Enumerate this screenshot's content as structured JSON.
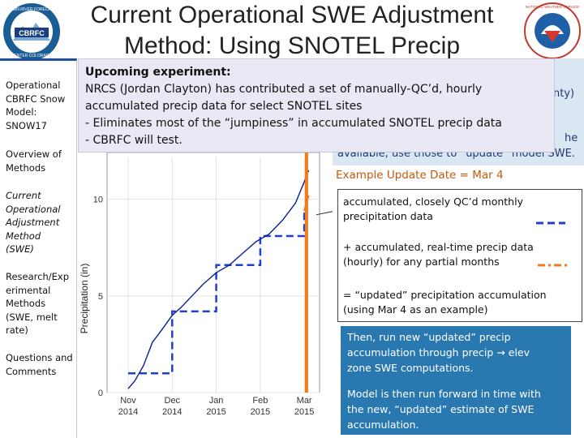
{
  "title_line1": "Current Operational SWE Adjustment",
  "title_line2": "Method: Using SNOTEL Precip",
  "logo_left": {
    "top_text": "BASIN RIVER FORECAST",
    "bottom_text": "CENTER COLORADO",
    "center": "CBRFC"
  },
  "logo_right": {
    "text": "NATIONAL WEATHER SERVICE"
  },
  "sidebar": {
    "item1": [
      "Operational",
      "CBRFC Snow",
      "Model:",
      "SNOW17"
    ],
    "item2": [
      "Overview of",
      "Methods"
    ],
    "item3": [
      "Current",
      "Operational",
      "Adjustment",
      "Method",
      "(SWE)"
    ],
    "item4": [
      "Research/Exp",
      "erimental",
      "Methods",
      "(SWE, melt",
      "rate)"
    ],
    "item5": [
      "Questions and",
      "Comments"
    ]
  },
  "popup": {
    "heading": "Upcoming experiment:",
    "line1": "NRCS (Jordan Clayton) has contributed a set of manually-QC’d, hourly",
    "line2": "accumulated precip data for select SNOTEL sites",
    "line3": "-  Eliminates most of the “jumpiness” in accumulated SNOTEL precip data",
    "line4": "-  CBRFC will test."
  },
  "right_top": {
    "frag1": "nty)",
    "frag2": "he",
    "frag3": "available, use those to “update” model SWE."
  },
  "example_date": "Example Update Date = Mar 4",
  "info": {
    "monthly_1": "accumulated, closely QC’d monthly",
    "monthly_2": "precipitation data",
    "realtime_1": "+ accumulated, real-time precip data",
    "realtime_2": "(hourly) for any partial months",
    "updated_1": "= “updated” precipitation accumulation",
    "updated_2": "(using Mar 4 as an example)"
  },
  "blue_box": {
    "para1_1": "Then, run new “updated” precip",
    "para1_2": "accumulation through precip → elev",
    "para1_3": "zone SWE computations.",
    "para2_1": "Model is then run forward in time with",
    "para2_2": "the new, “updated”  estimate of SWE",
    "para2_3": "accumulation."
  },
  "colors": {
    "accent_blue": "#2a78b0",
    "orange": "#f07b18",
    "dashed_blue": "#1f3fd1",
    "series_blue": "#0a1f8f"
  },
  "chart_data": {
    "type": "line",
    "ylabel": "Precipitation (in)",
    "xlabel": "",
    "ylim": [
      0,
      12
    ],
    "yticks": [
      "0",
      "5",
      "10"
    ],
    "xticks": [
      {
        "month": "Nov",
        "year": "2014"
      },
      {
        "month": "Dec",
        "year": "2014"
      },
      {
        "month": "Jan",
        "year": "2015"
      },
      {
        "month": "Feb",
        "year": "2015"
      },
      {
        "month": "Mar",
        "year": "2015"
      }
    ],
    "update_date": "Mar 4",
    "series": [
      {
        "style": "dashed",
        "description_key": "monthly",
        "points": [
          [
            0,
            1.0
          ],
          [
            1,
            1.0
          ],
          [
            1,
            4.2
          ],
          [
            2,
            4.2
          ],
          [
            2,
            6.6
          ],
          [
            3,
            6.6
          ],
          [
            3,
            8.1
          ],
          [
            4,
            8.1
          ],
          [
            4,
            9.4
          ]
        ]
      },
      {
        "style": "solid",
        "points": [
          [
            0,
            0.2
          ],
          [
            0.15,
            0.6
          ],
          [
            0.35,
            1.4
          ],
          [
            0.55,
            2.6
          ],
          [
            0.75,
            3.2
          ],
          [
            1.0,
            4.0
          ],
          [
            1.2,
            4.4
          ],
          [
            1.45,
            5.0
          ],
          [
            1.7,
            5.6
          ],
          [
            2.0,
            6.2
          ],
          [
            2.3,
            6.6
          ],
          [
            2.6,
            7.2
          ],
          [
            2.9,
            7.8
          ],
          [
            3.2,
            8.2
          ],
          [
            3.5,
            8.9
          ],
          [
            3.8,
            9.8
          ],
          [
            4.0,
            10.9
          ],
          [
            4.1,
            11.5
          ]
        ]
      },
      {
        "style": "dash-dot",
        "description_key": "realtime",
        "points": [
          [
            4.0,
            9.4
          ],
          [
            4.05,
            9.8
          ],
          [
            4.1,
            10.2
          ]
        ]
      }
    ]
  }
}
